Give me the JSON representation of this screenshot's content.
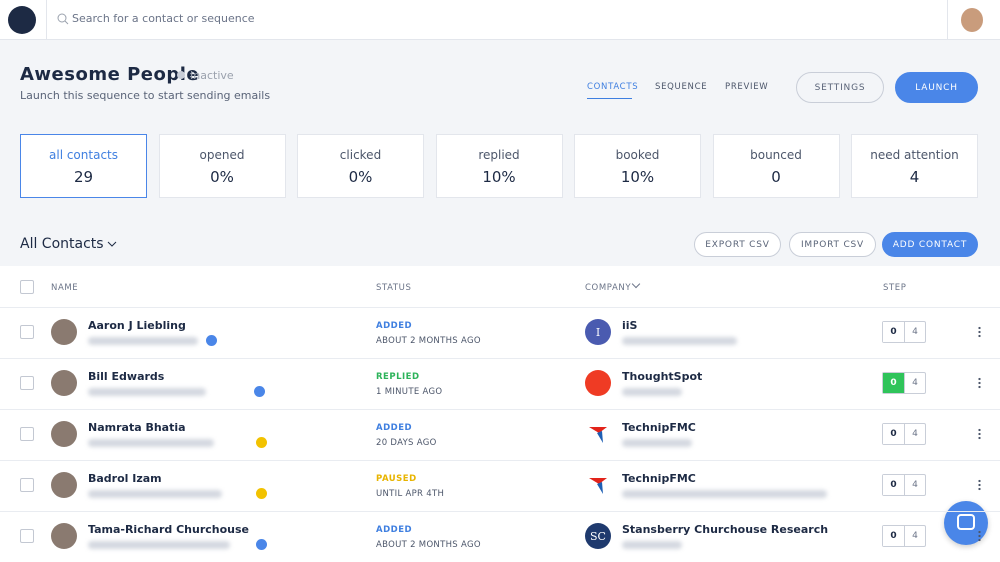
{
  "header": {
    "search_placeholder": "Search for a contact or sequence"
  },
  "sequence": {
    "title": "Awesome People",
    "status": "Inactive",
    "subtitle": "Launch this sequence to start sending emails",
    "tabs": [
      "CONTACTS",
      "SEQUENCE",
      "PREVIEW"
    ],
    "buttons": [
      "SETTINGS",
      "LAUNCH"
    ]
  },
  "stats": [
    {
      "label": "all contacts",
      "value": "29"
    },
    {
      "label": "opened",
      "value": "0%"
    },
    {
      "label": "clicked",
      "value": "0%"
    },
    {
      "label": "replied",
      "value": "10%"
    },
    {
      "label": "booked",
      "value": "10%"
    },
    {
      "label": "bounced",
      "value": "0"
    },
    {
      "label": "need attention",
      "value": "4"
    }
  ],
  "list": {
    "title": "All Contacts",
    "buttons": [
      "EXPORT CSV",
      "IMPORT CSV",
      "ADD CONTACT"
    ],
    "columns": [
      "NAME",
      "STATUS",
      "COMPANY",
      "STEP"
    ],
    "rows": [
      {
        "name": "Aaron J Liebling",
        "badge": "verified",
        "status": "ADDED",
        "status_color": "#3f7fe0",
        "time": "ABOUT 2 MONTHS AGO",
        "company": "iiS",
        "logo_text": "I",
        "logo_color": "#4a5bb0",
        "step": "0",
        "steps": "4",
        "step_color": "#ffffff"
      },
      {
        "name": "Bill Edwards",
        "badge": "verified",
        "status": "REPLIED",
        "status_color": "#2cb35a",
        "time": "1 MINUTE AGO",
        "company": "ThoughtSpot",
        "logo_text": "",
        "logo_color": "#ef3b24",
        "step": "0",
        "steps": "4",
        "step_color": "#2fc45a"
      },
      {
        "name": "Namrata Bhatia",
        "badge": "warning",
        "status": "ADDED",
        "status_color": "#3f7fe0",
        "time": "20 DAYS AGO",
        "company": "TechnipFMC",
        "logo_text": "",
        "logo_color": "#ffffff",
        "step": "0",
        "steps": "4",
        "step_color": "#ffffff"
      },
      {
        "name": "Badrol Izam",
        "badge": "warning",
        "status": "PAUSED",
        "status_color": "#e8b400",
        "time": "UNTIL APR 4TH",
        "company": "TechnipFMC",
        "logo_text": "",
        "logo_color": "#ffffff",
        "step": "0",
        "steps": "4",
        "step_color": "#ffffff"
      },
      {
        "name": "Tama-Richard Churchouse",
        "badge": "verified",
        "status": "ADDED",
        "status_color": "#3f7fe0",
        "time": "ABOUT 2 MONTHS AGO",
        "company": "Stansberry Churchouse Research",
        "logo_text": "SC",
        "logo_color": "#1f3a6e",
        "step": "0",
        "steps": "4",
        "step_color": "#ffffff"
      }
    ]
  }
}
